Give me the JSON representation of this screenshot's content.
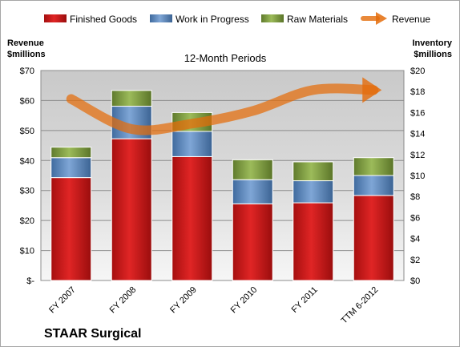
{
  "chart_data": {
    "type": "bar",
    "stacked": true,
    "subtitle": "12-Month Periods",
    "company": "STAAR Surgical",
    "categories": [
      "FY 2007",
      "FY 2008",
      "FY 2009",
      "FY 2010",
      "FY 2011",
      "TTM 6-2012"
    ],
    "left_axis": {
      "label_line1": "Revenue",
      "label_line2": "$millions",
      "range": [
        0,
        70
      ],
      "ticks": [
        0,
        10,
        20,
        30,
        40,
        50,
        60,
        70
      ],
      "tick_labels": [
        "$-",
        "$10",
        "$20",
        "$30",
        "$40",
        "$50",
        "$60",
        "$70"
      ]
    },
    "right_axis": {
      "label_line1": "Inventory",
      "label_line2": "$millions",
      "range": [
        0,
        20
      ],
      "ticks": [
        0,
        2,
        4,
        6,
        8,
        10,
        12,
        14,
        16,
        18,
        20
      ],
      "tick_labels": [
        "$0",
        "$2",
        "$4",
        "$6",
        "$8",
        "$10",
        "$12",
        "$14",
        "$16",
        "$18",
        "$20"
      ]
    },
    "series": [
      {
        "name": "Finished Goods",
        "axis": "right",
        "color": "#c00000",
        "values": [
          9.8,
          13.5,
          11.8,
          7.3,
          7.4,
          8.1
        ]
      },
      {
        "name": "Work in Progress",
        "axis": "right",
        "color": "#4f81bd",
        "values": [
          1.9,
          3.1,
          2.4,
          2.3,
          2.1,
          1.9
        ]
      },
      {
        "name": "Raw Materials",
        "axis": "right",
        "color": "#77933c",
        "values": [
          1.0,
          1.5,
          1.8,
          1.9,
          1.8,
          1.7
        ]
      },
      {
        "name": "Revenue",
        "axis": "left",
        "type": "line",
        "color": "#e46c0a",
        "values": [
          60.5,
          50.5,
          52.3,
          56.5,
          63.5,
          63.5
        ]
      }
    ],
    "grid": true,
    "legend_position": "top"
  }
}
